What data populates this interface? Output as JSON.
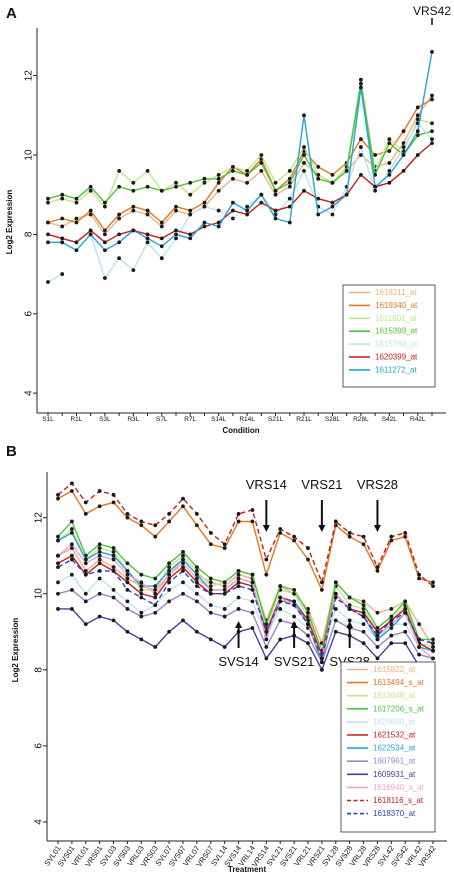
{
  "chart_data": [
    {
      "type": "line",
      "panel_label": "A",
      "xlabel": "Condition",
      "ylabel": "Log2 Expression",
      "ylim": [
        3.5,
        13.2
      ],
      "yticks": [
        "4",
        "6",
        "8",
        "10",
        "12"
      ],
      "categories": [
        "S1L",
        "",
        "R1L",
        "",
        "S3L",
        "",
        "R3L",
        "",
        "S7L",
        "",
        "R7L",
        "",
        "S14L",
        "",
        "R14L",
        "",
        "S21L",
        "",
        "R21L",
        "",
        "S28L",
        "",
        "R28L",
        "",
        "S42L",
        "",
        "R42L",
        ""
      ],
      "annotations": [
        {
          "text": "VRS42"
        }
      ],
      "legend_position": "bottom-right",
      "series": [
        {
          "name": "1618211_at",
          "color": "#f2b183",
          "values": [
            8.3,
            8.2,
            8.4,
            8.5,
            8.0,
            8.4,
            8.6,
            8.5,
            8.2,
            8.6,
            8.5,
            8.7,
            9.1,
            9.4,
            9.3,
            9.6,
            9.0,
            9.2,
            9.8,
            9.5,
            9.3,
            9.6,
            10.0,
            9.7,
            9.8,
            10.3,
            11.0,
            11.5
          ]
        },
        {
          "name": "1619340_at",
          "color": "#e8771c",
          "values": [
            8.3,
            8.4,
            8.3,
            8.6,
            8.1,
            8.5,
            8.7,
            8.6,
            8.3,
            8.7,
            8.6,
            8.8,
            9.3,
            9.7,
            9.5,
            9.9,
            9.1,
            9.4,
            10.1,
            9.7,
            9.5,
            9.8,
            10.4,
            10.0,
            10.1,
            10.6,
            11.2,
            11.4
          ]
        },
        {
          "name": "1611601_at",
          "color": "#c6e38e",
          "values": [
            8.8,
            8.9,
            8.8,
            9.1,
            8.7,
            9.6,
            9.3,
            9.6,
            9.1,
            9.3,
            9.0,
            9.3,
            9.5,
            9.7,
            9.6,
            10.0,
            9.3,
            9.6,
            10.2,
            9.5,
            9.3,
            9.7,
            11.9,
            9.6,
            10.4,
            10.1,
            10.9,
            10.8
          ]
        },
        {
          "name": "1615399_at",
          "color": "#48c83a",
          "values": [
            8.9,
            9.0,
            8.9,
            9.2,
            8.8,
            9.2,
            9.1,
            9.2,
            9.1,
            9.2,
            9.3,
            9.4,
            9.4,
            9.6,
            9.5,
            9.8,
            9.1,
            9.3,
            10.0,
            9.4,
            9.3,
            9.6,
            11.8,
            9.5,
            10.3,
            10.0,
            10.5,
            10.6
          ]
        },
        {
          "name": "1615789_at",
          "color": "#bde3ee",
          "values": [
            6.8,
            7.0,
            null,
            8.0,
            6.9,
            7.4,
            7.1,
            7.8,
            7.4,
            7.9,
            8.5,
            8.7,
            8.6,
            8.4,
            8.7,
            9.0,
            8.5,
            8.9,
            9.6,
            8.7,
            8.5,
            9.2,
            10.2,
            9.1,
            9.6,
            10.2,
            10.8,
            10.4
          ]
        },
        {
          "name": "1620399_at",
          "color": "#cc1b1b",
          "values": [
            8.0,
            7.9,
            7.8,
            8.1,
            7.8,
            8.0,
            8.1,
            8.0,
            7.9,
            8.1,
            8.0,
            8.2,
            8.3,
            8.6,
            8.5,
            8.8,
            8.6,
            8.7,
            9.1,
            8.9,
            8.8,
            9.0,
            9.5,
            9.2,
            9.3,
            9.6,
            10.0,
            10.3
          ]
        },
        {
          "name": "1611272_at",
          "color": "#26a3dc",
          "values": [
            7.8,
            7.8,
            7.6,
            8.0,
            7.6,
            7.8,
            8.1,
            7.9,
            7.7,
            8.0,
            7.9,
            8.3,
            8.2,
            8.8,
            8.6,
            9.0,
            8.4,
            8.3,
            11.0,
            8.5,
            8.7,
            9.0,
            11.7,
            9.2,
            9.5,
            10.0,
            10.6,
            12.6
          ]
        }
      ]
    },
    {
      "type": "line",
      "panel_label": "B",
      "xlabel": "Treatment",
      "ylabel": "Log2 Expression",
      "ylim": [
        3.5,
        13.2
      ],
      "yticks": [
        "4",
        "6",
        "8",
        "10",
        "12"
      ],
      "categories": [
        "SVL01",
        "SVS01",
        "VRL01",
        "VRS01",
        "SVL03",
        "SVS03",
        "VRL03",
        "VRS03",
        "SVL07",
        "SVS07",
        "VRL07",
        "VRS07",
        "SVL14",
        "SVS14",
        "VRL14",
        "VRS14",
        "SVL21",
        "SVS21",
        "VRL21",
        "VRS21",
        "SVL28",
        "SVS28",
        "VRL28",
        "VRS28",
        "SVL42",
        "SVS42",
        "VRL42",
        "VRS42"
      ],
      "annotations": [
        {
          "text": "VRS14",
          "at": "VRS14",
          "direction": "down"
        },
        {
          "text": "VRS21",
          "at": "VRS21",
          "direction": "down"
        },
        {
          "text": "VRS28",
          "at": "VRS28",
          "direction": "down"
        },
        {
          "text": "SVS14",
          "at": "SVS14",
          "direction": "up"
        },
        {
          "text": "SVS21",
          "at": "SVS21",
          "direction": "up"
        },
        {
          "text": "SVS28",
          "at": "SVS28",
          "direction": "up"
        }
      ],
      "legend_position": "bottom-right",
      "series": [
        {
          "name": "1615822_at",
          "color": "#f2b183",
          "dashed": false,
          "values": [
            11.0,
            11.2,
            10.6,
            10.9,
            10.7,
            10.4,
            10.2,
            10.1,
            10.5,
            10.9,
            10.5,
            10.3,
            10.2,
            10.5,
            10.4,
            9.3,
            10.2,
            10.0,
            9.6,
            8.7,
            10.3,
            9.9,
            9.8,
            9.5,
            9.6,
            9.8,
            9.2,
            8.6
          ]
        },
        {
          "name": "1613494_s_at",
          "color": "#e8771c",
          "dashed": false,
          "values": [
            12.5,
            12.7,
            12.1,
            12.3,
            12.4,
            12.0,
            11.8,
            11.5,
            11.9,
            12.3,
            11.8,
            11.3,
            11.2,
            11.9,
            11.9,
            10.5,
            11.6,
            11.4,
            10.9,
            10.1,
            11.8,
            11.5,
            11.3,
            10.6,
            11.4,
            11.5,
            10.4,
            10.3
          ]
        },
        {
          "name": "1613648_at",
          "color": "#c6e38e",
          "dashed": false,
          "values": [
            11.4,
            11.7,
            10.9,
            11.2,
            11.1,
            10.6,
            10.1,
            10.1,
            10.7,
            11.0,
            10.6,
            10.2,
            10.3,
            10.6,
            10.5,
            9.1,
            10.1,
            10.0,
            9.4,
            8.4,
            10.2,
            9.7,
            9.6,
            9.0,
            9.3,
            9.7,
            8.7,
            8.6
          ]
        },
        {
          "name": "1617206_s_at",
          "color": "#48c83a",
          "dashed": false,
          "values": [
            11.5,
            11.9,
            11.0,
            11.3,
            11.2,
            10.8,
            10.5,
            10.4,
            10.8,
            11.1,
            10.7,
            10.4,
            10.3,
            10.6,
            10.5,
            9.2,
            10.2,
            10.1,
            9.5,
            8.5,
            10.3,
            9.9,
            9.7,
            9.1,
            9.4,
            9.8,
            8.8,
            8.8
          ]
        },
        {
          "name": "1620650_at",
          "color": "#bde3ee",
          "dashed": false,
          "values": [
            10.3,
            10.5,
            10.0,
            10.4,
            10.1,
            9.8,
            9.5,
            9.7,
            10.1,
            10.3,
            10.0,
            9.7,
            9.6,
            9.9,
            9.8,
            8.9,
            9.6,
            9.4,
            9.1,
            8.5,
            9.6,
            9.3,
            9.2,
            8.8,
            9.2,
            9.2,
            8.6,
            8.5
          ]
        },
        {
          "name": "1621532_at",
          "color": "#cc1b1b",
          "dashed": false,
          "values": [
            10.8,
            11.0,
            10.5,
            10.8,
            10.6,
            10.3,
            10.0,
            9.9,
            10.4,
            10.7,
            10.3,
            10.0,
            10.0,
            10.3,
            10.2,
            9.0,
            9.9,
            9.8,
            9.3,
            8.4,
            10.0,
            9.6,
            9.5,
            9.0,
            9.3,
            9.6,
            8.7,
            8.5
          ]
        },
        {
          "name": "1622534_at",
          "color": "#26a3dc",
          "dashed": false,
          "values": [
            11.4,
            11.6,
            10.9,
            11.1,
            11.0,
            10.6,
            10.2,
            10.2,
            10.6,
            10.9,
            10.5,
            10.1,
            10.1,
            10.4,
            10.3,
            8.9,
            9.8,
            9.8,
            9.2,
            8.2,
            10.0,
            9.6,
            9.4,
            8.8,
            9.1,
            9.5,
            8.6,
            8.5
          ]
        },
        {
          "name": "1607961_at",
          "color": "#9a86d0",
          "dashed": false,
          "values": [
            10.0,
            10.1,
            9.8,
            10.0,
            9.9,
            9.6,
            9.4,
            9.5,
            9.8,
            10.0,
            9.8,
            9.5,
            9.4,
            9.6,
            9.5,
            8.6,
            9.3,
            9.2,
            8.9,
            8.2,
            9.3,
            9.1,
            9.0,
            8.6,
            8.9,
            9.0,
            8.4,
            8.3
          ]
        },
        {
          "name": "1609931_at",
          "color": "#4a3fa0",
          "dashed": false,
          "values": [
            9.6,
            9.6,
            9.2,
            9.4,
            9.3,
            9.0,
            8.8,
            8.6,
            9.0,
            9.3,
            9.0,
            8.8,
            8.6,
            9.0,
            9.1,
            8.3,
            8.8,
            8.9,
            8.7,
            8.0,
            9.0,
            8.9,
            8.7,
            8.3,
            8.7,
            8.7,
            8.1,
            8.0
          ]
        },
        {
          "name": "1616940_s_at",
          "color": "#f0a5cc",
          "dashed": false,
          "values": [
            11.0,
            11.3,
            10.8,
            11.0,
            10.9,
            10.5,
            10.3,
            10.0,
            10.5,
            10.8,
            10.4,
            10.1,
            10.1,
            10.4,
            10.3,
            8.8,
            9.9,
            9.7,
            9.2,
            8.3,
            10.0,
            9.6,
            9.4,
            8.9,
            9.2,
            9.5,
            8.6,
            8.3
          ]
        },
        {
          "name": "1618116_s_at",
          "color": "#cc1b1b",
          "dashed": true,
          "values": [
            12.6,
            12.9,
            12.4,
            12.7,
            12.6,
            12.1,
            11.9,
            11.8,
            12.1,
            12.5,
            12.1,
            11.6,
            11.3,
            12.1,
            12.2,
            10.9,
            11.7,
            11.5,
            11.2,
            10.3,
            11.9,
            11.6,
            11.5,
            10.7,
            11.5,
            11.6,
            10.5,
            10.2
          ]
        },
        {
          "name": "1618370_at",
          "color": "#3340b8",
          "dashed": true,
          "values": [
            10.7,
            10.9,
            10.5,
            10.6,
            10.6,
            10.1,
            9.9,
            9.7,
            10.3,
            10.6,
            10.2,
            10.0,
            10.0,
            10.2,
            10.1,
            9.0,
            9.8,
            9.7,
            9.2,
            8.3,
            9.9,
            9.6,
            9.4,
            8.9,
            9.3,
            9.5,
            8.8,
            8.7
          ]
        }
      ]
    }
  ]
}
